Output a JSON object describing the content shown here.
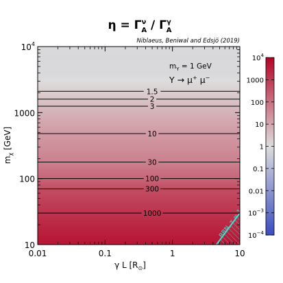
{
  "chart_data": {
    "type": "heatmap",
    "title_eta": "η",
    "title_eq": " = ",
    "title_num": "Γ",
    "title_num_sup": "ν",
    "title_num_sub": "A",
    "title_sep": " / ",
    "title_den": "Γ",
    "title_den_sup": "γ",
    "title_den_sub": "A",
    "citation": "Niblaeus, Beniwal and Edsjö (2019)",
    "xlabel_main": "γ L [R",
    "xlabel_sym": "⊙",
    "xlabel_end": "]",
    "ylabel_main": "m",
    "ylabel_sub": "χ",
    "ylabel_unit": " [GeV]",
    "xscale": "log",
    "yscale": "log",
    "xlim": [
      0.01,
      10
    ],
    "ylim": [
      10,
      10000
    ],
    "x_ticks": [
      0.01,
      0.1,
      1,
      10
    ],
    "x_tick_labels": [
      "0.01",
      "0.1",
      "1",
      "10"
    ],
    "y_ticks": [
      10,
      100,
      1000,
      10000
    ],
    "y_tick_labels": [
      "10",
      "100",
      "1000",
      ""
    ],
    "y_tick_label_top_base": "10",
    "y_tick_label_top_exp": "4",
    "annotation_mass": "m",
    "annotation_mass_sub": "Y",
    "annotation_mass_val": " = 1 GeV",
    "annotation_decay": "Y → μ",
    "annotation_decay_sup1": "+",
    "annotation_decay_mid": " μ",
    "annotation_decay_sup2": "−",
    "bbn_label": "BBN, τ = 1s",
    "bbn_boundary": [
      [
        4.5,
        10
      ],
      [
        10,
        30
      ]
    ],
    "contours": [
      {
        "level": 1.5,
        "label": "1.5",
        "m": 2100
      },
      {
        "level": 2,
        "label": "2",
        "m": 1600
      },
      {
        "level": 3,
        "label": "3",
        "m": 1250
      },
      {
        "level": 10,
        "label": "10",
        "m": 480
      },
      {
        "level": 30,
        "label": "30",
        "m": 178
      },
      {
        "level": 100,
        "label": "100",
        "m": 100
      },
      {
        "level": 300,
        "label": "300",
        "m": 70
      },
      {
        "level": 1000,
        "label": "1000",
        "m": 30
      }
    ],
    "colorbar": {
      "scale": "log",
      "range": [
        0.0001,
        10000
      ],
      "ticks": [
        {
          "value": 10000,
          "base": "10",
          "exp": "4"
        },
        {
          "value": 1000,
          "base": "1000",
          "exp": ""
        },
        {
          "value": 100,
          "base": "100",
          "exp": ""
        },
        {
          "value": 10,
          "base": "10",
          "exp": ""
        },
        {
          "value": 1,
          "base": "1",
          "exp": ""
        },
        {
          "value": 0.1,
          "base": "0.1",
          "exp": ""
        },
        {
          "value": 0.01,
          "base": "0.01",
          "exp": ""
        },
        {
          "value": 0.001,
          "base": "10",
          "exp": "−3"
        },
        {
          "value": 0.0001,
          "base": "10",
          "exp": "−4"
        }
      ],
      "colors": [
        "#3b4cc0",
        "#dddddd",
        "#b40426"
      ]
    }
  }
}
